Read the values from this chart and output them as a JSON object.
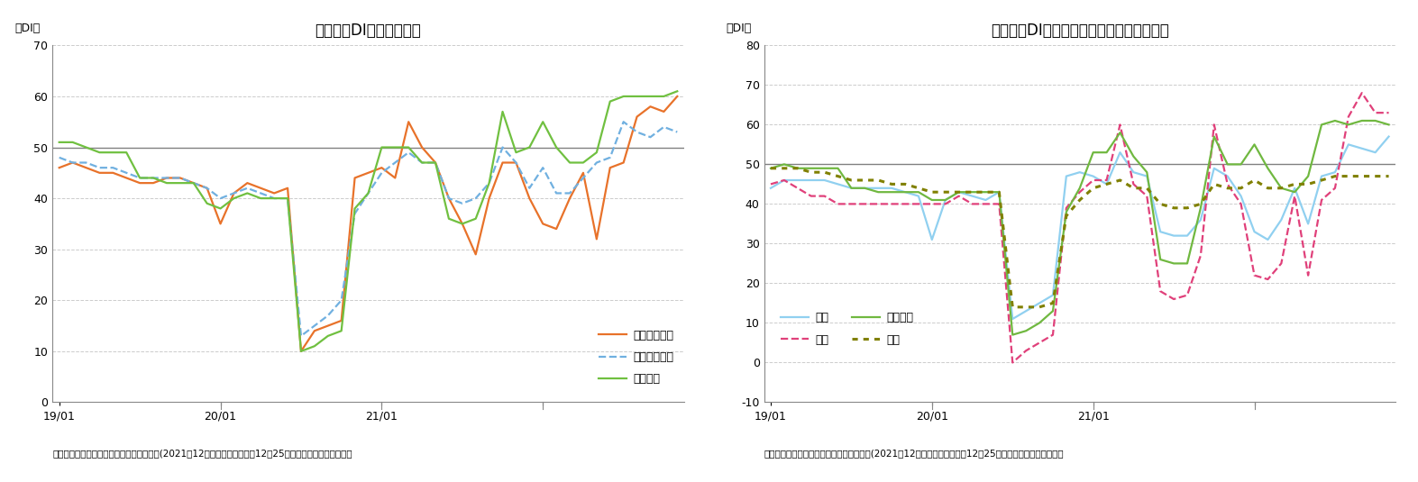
{
  "chart1": {
    "title": "現状判断DIの内訳の推移",
    "ylabel": "（DI）",
    "ylim": [
      0,
      70
    ],
    "yticks": [
      0,
      10,
      20,
      30,
      40,
      50,
      60,
      70
    ],
    "hline": 50,
    "source": "（出所）内閣府「景気ウォッチャー調査」(2021年12月調査、調査期間：12月25日から月末、季節調整値）",
    "series": {
      "家計動向関連": {
        "color": "#E8722A",
        "linestyle": "solid",
        "linewidth": 1.6,
        "values": [
          46,
          47,
          46,
          45,
          45,
          44,
          43,
          43,
          44,
          44,
          43,
          42,
          35,
          41,
          43,
          42,
          41,
          42,
          10,
          14,
          15,
          16,
          44,
          45,
          46,
          44,
          55,
          50,
          47,
          40,
          35,
          29,
          40,
          47,
          47,
          40,
          35,
          34,
          40,
          45,
          32,
          46,
          47,
          56,
          58,
          57,
          60
        ]
      },
      "企業動向関連": {
        "color": "#70B0E0",
        "linestyle": "dashed",
        "linewidth": 1.6,
        "values": [
          48,
          47,
          47,
          46,
          46,
          45,
          44,
          44,
          44,
          44,
          43,
          42,
          40,
          41,
          42,
          41,
          40,
          40,
          13,
          15,
          17,
          20,
          37,
          41,
          45,
          47,
          49,
          47,
          47,
          40,
          39,
          40,
          43,
          50,
          47,
          42,
          46,
          41,
          41,
          44,
          47,
          48,
          55,
          53,
          52,
          54,
          53
        ]
      },
      "雇用関連": {
        "color": "#70C040",
        "linestyle": "solid",
        "linewidth": 1.6,
        "values": [
          51,
          51,
          50,
          49,
          49,
          49,
          44,
          44,
          43,
          43,
          43,
          39,
          38,
          40,
          41,
          40,
          40,
          40,
          10,
          11,
          13,
          14,
          38,
          41,
          50,
          50,
          50,
          47,
          47,
          36,
          35,
          36,
          43,
          57,
          49,
          50,
          55,
          50,
          47,
          47,
          49,
          59,
          60,
          60,
          60,
          60,
          61
        ]
      }
    },
    "xtick_positions": [
      0,
      12,
      24,
      36
    ],
    "xtick_labels": [
      "19/01",
      "20/01",
      "21/01",
      ""
    ],
    "n_points": 47
  },
  "chart2": {
    "title": "現状判断DI（家計動向関連）の内訳の推移",
    "ylabel": "（DI）",
    "ylim": [
      -10,
      80
    ],
    "yticks": [
      -10,
      0,
      10,
      20,
      30,
      40,
      50,
      60,
      70,
      80
    ],
    "hline": 50,
    "source": "（出所）内閣府「景気ウォッチャー調査」(2021年12月調査、調査期間：12月25日から月末、季節調整値）",
    "series": {
      "小売": {
        "color": "#90D0F0",
        "linestyle": "solid",
        "linewidth": 1.6,
        "values": [
          44,
          46,
          46,
          46,
          46,
          45,
          44,
          44,
          44,
          44,
          43,
          42,
          31,
          41,
          43,
          42,
          41,
          43,
          11,
          13,
          15,
          17,
          47,
          48,
          47,
          45,
          53,
          48,
          47,
          33,
          32,
          32,
          36,
          49,
          47,
          42,
          33,
          31,
          36,
          44,
          35,
          47,
          48,
          55,
          54,
          53,
          57
        ]
      },
      "飲食": {
        "color": "#E0407A",
        "linestyle": "dashed",
        "linewidth": 1.6,
        "values": [
          45,
          46,
          44,
          42,
          42,
          40,
          40,
          40,
          40,
          40,
          40,
          40,
          40,
          40,
          42,
          40,
          40,
          40,
          0,
          3,
          5,
          7,
          39,
          43,
          46,
          46,
          60,
          45,
          42,
          18,
          16,
          17,
          27,
          60,
          45,
          40,
          22,
          21,
          25,
          42,
          22,
          41,
          44,
          62,
          68,
          63,
          63
        ]
      },
      "サービス": {
        "color": "#70B840",
        "linestyle": "solid",
        "linewidth": 1.6,
        "values": [
          49,
          50,
          49,
          49,
          49,
          49,
          44,
          44,
          43,
          43,
          43,
          43,
          41,
          41,
          43,
          43,
          43,
          43,
          7,
          8,
          10,
          13,
          38,
          44,
          53,
          53,
          58,
          52,
          48,
          26,
          25,
          25,
          39,
          57,
          50,
          50,
          55,
          49,
          44,
          43,
          47,
          60,
          61,
          60,
          61,
          61,
          60
        ]
      },
      "住宅": {
        "color": "#808000",
        "linestyle": "dotted",
        "linewidth": 2.2,
        "values": [
          49,
          49,
          49,
          48,
          48,
          47,
          46,
          46,
          46,
          45,
          45,
          44,
          43,
          43,
          43,
          43,
          43,
          43,
          14,
          14,
          14,
          15,
          37,
          41,
          44,
          45,
          46,
          44,
          44,
          40,
          39,
          39,
          40,
          45,
          44,
          44,
          46,
          44,
          44,
          45,
          45,
          46,
          47,
          47,
          47,
          47,
          47
        ]
      }
    },
    "xtick_positions": [
      0,
      12,
      24,
      36
    ],
    "xtick_labels": [
      "19/01",
      "20/01",
      "21/01",
      ""
    ],
    "n_points": 47
  }
}
